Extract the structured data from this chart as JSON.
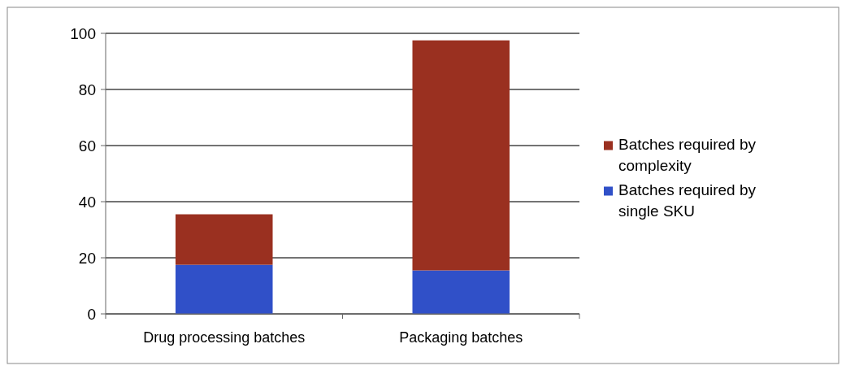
{
  "chart_data": {
    "type": "bar",
    "stacked": true,
    "categories": [
      "Drug processing batches",
      "Packaging batches"
    ],
    "series": [
      {
        "name": "Batches required by single SKU",
        "color": "#3050c8",
        "values": [
          17.5,
          15.5
        ]
      },
      {
        "name": "Batches required by complexity",
        "color": "#9a3020",
        "values": [
          18,
          82
        ]
      }
    ],
    "ylim": [
      0,
      100
    ],
    "yticks": [
      0,
      20,
      40,
      60,
      80,
      100
    ],
    "grid": "y",
    "legend": "right"
  }
}
